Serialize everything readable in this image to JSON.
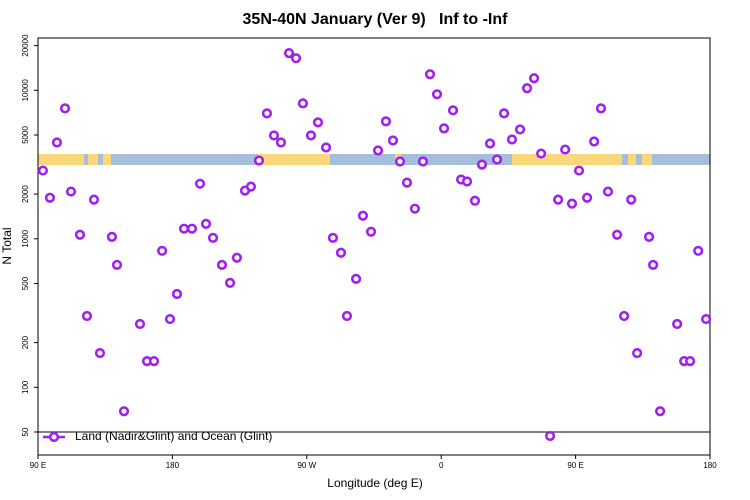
{
  "chart_data": {
    "type": "scatter",
    "title": "35N-40N January (Ver 9)   Inf to -Inf",
    "x_label": "Longitude (deg E)",
    "y_label": "N Total",
    "log_y": true,
    "xlim": [
      90,
      540
    ],
    "xticks": [
      {
        "value": 90,
        "label": "90 E"
      },
      180,
      {
        "value": 270,
        "label": "90 W"
      },
      {
        "value": 360,
        "label": "0"
      },
      {
        "value": 450,
        "label": "90 E"
      },
      {
        "value": 540,
        "label": "180"
      }
    ],
    "ylim": [
      35,
      22500
    ],
    "yticks": [
      50,
      100,
      200,
      500,
      1000,
      2000,
      5000,
      10000,
      20000
    ],
    "legend": "bottom-left",
    "series": [
      {
        "name": "Land (Nadir&Glint) and Ocean (Glint)",
        "color": "#a020f0",
        "x": [
          93.3,
          98.0,
          102.7,
          108.1,
          112.1,
          118.1,
          122.8,
          127.5,
          131.5,
          139.5,
          142.9,
          147.6,
          158.3,
          163.0,
          167.7,
          173.1,
          178.4,
          183.1,
          187.8,
          193.1,
          198.5,
          202.5,
          207.2,
          213.2,
          218.6,
          223.2,
          228.6,
          232.6,
          238.0,
          243.3,
          248.0,
          252.7,
          258.1,
          262.8,
          267.4,
          272.8,
          277.5,
          282.9,
          287.5,
          292.9,
          296.9,
          303.0,
          307.6,
          313.0,
          317.7,
          323.0,
          327.7,
          332.4,
          337.1,
          342.4,
          347.8,
          352.5,
          357.2,
          361.9,
          367.9,
          373.3,
          377.3,
          382.6,
          387.3,
          392.7,
          397.4,
          402.1,
          407.4,
          412.8,
          417.5,
          422.2,
          426.9,
          432.9,
          438.3,
          443.0,
          447.6,
          452.3,
          457.7,
          462.4,
          467.0,
          471.7,
          477.8,
          482.5,
          487.2,
          491.2,
          499.2,
          501.9,
          506.6,
          518.0,
          522.7,
          526.7,
          532.1,
          537.4
        ],
        "values": [
          2880,
          1890,
          4450,
          7560,
          2080,
          1065,
          302,
          1835,
          170,
          1030,
          667,
          69,
          267,
          150,
          150,
          830,
          288,
          425,
          1170,
          1170,
          2350,
          1260,
          1015,
          667,
          505,
          745,
          2110,
          2245,
          3365,
          6990,
          4965,
          4450,
          17800,
          16450,
          8170,
          4965,
          6080,
          4120,
          1015,
          805,
          302,
          537,
          1430,
          1115,
          3930,
          6180,
          4590,
          3315,
          2390,
          1595,
          3315,
          12830,
          9400,
          5540,
          7330,
          2505,
          2430,
          1805,
          3160,
          4385,
          3420,
          6990,
          4665,
          5450,
          10320,
          12050,
          3750,
          47,
          1835,
          3990,
          1725,
          2880,
          1890,
          4520,
          7560,
          2080,
          1065,
          302,
          1835,
          170,
          1030,
          667,
          69,
          267,
          150,
          150,
          830,
          288
        ]
      }
    ]
  }
}
